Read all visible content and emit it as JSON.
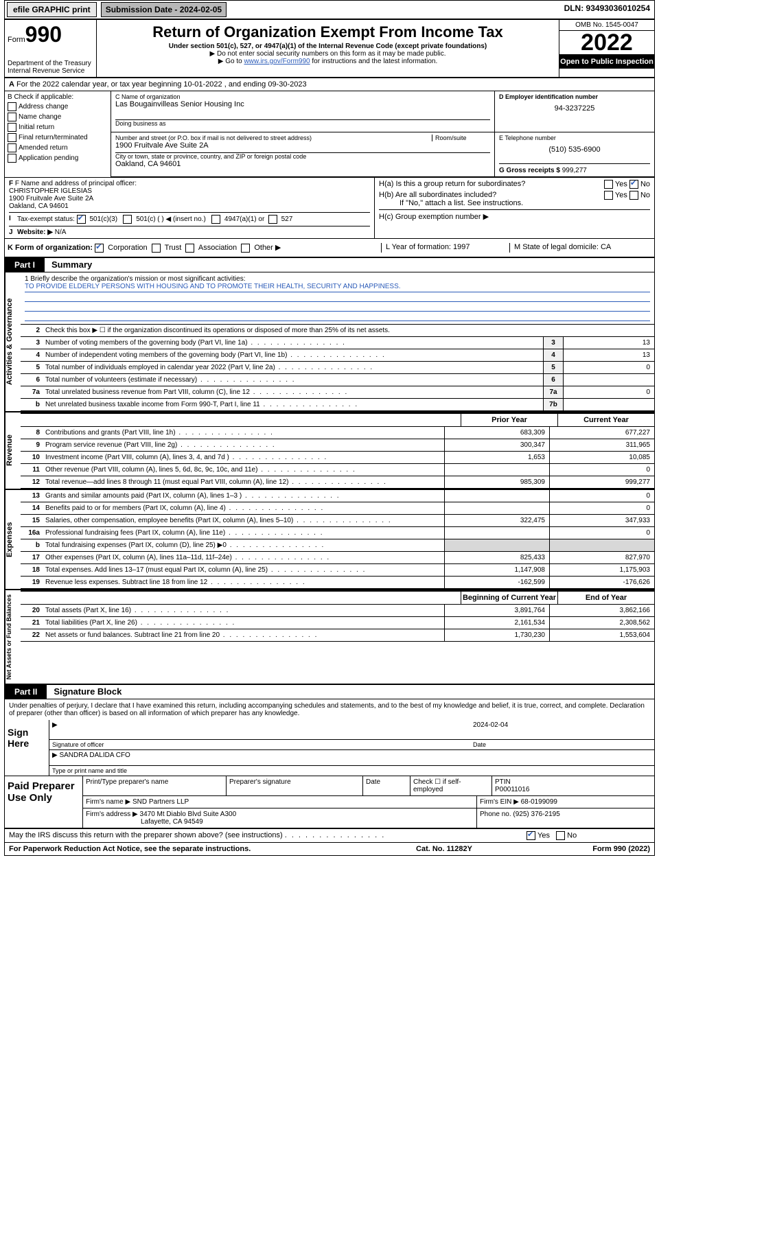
{
  "topbar": {
    "efile": "efile GRAPHIC print",
    "submission": "Submission Date - 2024-02-05",
    "dln": "DLN: 93493036010254"
  },
  "header": {
    "form_prefix": "Form",
    "form_num": "990",
    "dept": "Department of the Treasury\nInternal Revenue Service",
    "title": "Return of Organization Exempt From Income Tax",
    "sub1": "Under section 501(c), 527, or 4947(a)(1) of the Internal Revenue Code (except private foundations)",
    "sub2": "▶ Do not enter social security numbers on this form as it may be made public.",
    "sub3_pre": "▶ Go to ",
    "sub3_link": "www.irs.gov/Form990",
    "sub3_post": " for instructions and the latest information.",
    "omb": "OMB No. 1545-0047",
    "year": "2022",
    "open": "Open to Public Inspection"
  },
  "row_a": "For the 2022 calendar year, or tax year beginning 10-01-2022  , and ending 09-30-2023",
  "section_b": {
    "label": "B Check if applicable:",
    "items": [
      "Address change",
      "Name change",
      "Initial return",
      "Final return/terminated",
      "Amended return",
      "Application pending"
    ]
  },
  "section_c": {
    "name_lbl": "C Name of organization",
    "name": "Las Bougainvilleas Senior Housing Inc",
    "dba_lbl": "Doing business as",
    "dba": "",
    "addr_lbl": "Number and street (or P.O. box if mail is not delivered to street address)",
    "room_lbl": "Room/suite",
    "addr": "1900 Fruitvale Ave Suite 2A",
    "city_lbl": "City or town, state or province, country, and ZIP or foreign postal code",
    "city": "Oakland, CA  94601"
  },
  "section_d": {
    "lbl": "D Employer identification number",
    "val": "94-3237225"
  },
  "section_e": {
    "lbl": "E Telephone number",
    "val": "(510) 535-6900"
  },
  "section_g": {
    "lbl": "G Gross receipts $",
    "val": "999,277"
  },
  "section_f": {
    "lbl": "F Name and address of principal officer:",
    "name": "CHRISTOPHER IGLESIAS",
    "addr1": "1900 Fruitvale Ave Suite 2A",
    "addr2": "Oakland, CA  94601"
  },
  "section_h": {
    "ha": "H(a)  Is this a group return for subordinates?",
    "hb": "H(b)  Are all subordinates included?",
    "hb_note": "If \"No,\" attach a list. See instructions.",
    "hc": "H(c)  Group exemption number ▶",
    "yes": "Yes",
    "no": "No"
  },
  "row_i": {
    "lbl": "Tax-exempt status:",
    "o1": "501(c)(3)",
    "o2": "501(c) (  ) ◀ (insert no.)",
    "o3": "4947(a)(1) or",
    "o4": "527"
  },
  "row_j": {
    "lbl": "Website: ▶",
    "val": "N/A"
  },
  "row_k": {
    "lbl": "K Form of organization:",
    "o1": "Corporation",
    "o2": "Trust",
    "o3": "Association",
    "o4": "Other ▶",
    "l": "L Year of formation: 1997",
    "m": "M State of legal domicile: CA"
  },
  "part1": {
    "tab": "Part I",
    "title": "Summary"
  },
  "side_labels": {
    "gov": "Activities & Governance",
    "rev": "Revenue",
    "exp": "Expenses",
    "net": "Net Assets or\nFund Balances"
  },
  "mission": {
    "q": "1   Briefly describe the organization's mission or most significant activities:",
    "txt": "TO PROVIDE ELDERLY PERSONS WITH HOUSING AND TO PROMOTE THEIR HEALTH, SECURITY AND HAPPINESS."
  },
  "gov_lines": [
    {
      "n": "2",
      "t": "Check this box ▶ ☐ if the organization discontinued its operations or disposed of more than 25% of its net assets.",
      "box": "",
      "v": ""
    },
    {
      "n": "3",
      "t": "Number of voting members of the governing body (Part VI, line 1a)",
      "box": "3",
      "v": "13"
    },
    {
      "n": "4",
      "t": "Number of independent voting members of the governing body (Part VI, line 1b)",
      "box": "4",
      "v": "13"
    },
    {
      "n": "5",
      "t": "Total number of individuals employed in calendar year 2022 (Part V, line 2a)",
      "box": "5",
      "v": "0"
    },
    {
      "n": "6",
      "t": "Total number of volunteers (estimate if necessary)",
      "box": "6",
      "v": ""
    },
    {
      "n": "7a",
      "t": "Total unrelated business revenue from Part VIII, column (C), line 12",
      "box": "7a",
      "v": "0"
    },
    {
      "n": "b",
      "t": "Net unrelated business taxable income from Form 990-T, Part I, line 11",
      "box": "7b",
      "v": ""
    }
  ],
  "fin_head": {
    "c1": "Prior Year",
    "c2": "Current Year"
  },
  "rev_lines": [
    {
      "n": "8",
      "t": "Contributions and grants (Part VIII, line 1h)",
      "c1": "683,309",
      "c2": "677,227"
    },
    {
      "n": "9",
      "t": "Program service revenue (Part VIII, line 2g)",
      "c1": "300,347",
      "c2": "311,965"
    },
    {
      "n": "10",
      "t": "Investment income (Part VIII, column (A), lines 3, 4, and 7d )",
      "c1": "1,653",
      "c2": "10,085"
    },
    {
      "n": "11",
      "t": "Other revenue (Part VIII, column (A), lines 5, 6d, 8c, 9c, 10c, and 11e)",
      "c1": "",
      "c2": "0"
    },
    {
      "n": "12",
      "t": "Total revenue—add lines 8 through 11 (must equal Part VIII, column (A), line 12)",
      "c1": "985,309",
      "c2": "999,277"
    }
  ],
  "exp_lines": [
    {
      "n": "13",
      "t": "Grants and similar amounts paid (Part IX, column (A), lines 1–3 )",
      "c1": "",
      "c2": "0"
    },
    {
      "n": "14",
      "t": "Benefits paid to or for members (Part IX, column (A), line 4)",
      "c1": "",
      "c2": "0"
    },
    {
      "n": "15",
      "t": "Salaries, other compensation, employee benefits (Part IX, column (A), lines 5–10)",
      "c1": "322,475",
      "c2": "347,933"
    },
    {
      "n": "16a",
      "t": "Professional fundraising fees (Part IX, column (A), line 11e)",
      "c1": "",
      "c2": "0"
    },
    {
      "n": "b",
      "t": "Total fundraising expenses (Part IX, column (D), line 25) ▶0",
      "c1": "shade",
      "c2": "shade"
    },
    {
      "n": "17",
      "t": "Other expenses (Part IX, column (A), lines 11a–11d, 11f–24e)",
      "c1": "825,433",
      "c2": "827,970"
    },
    {
      "n": "18",
      "t": "Total expenses. Add lines 13–17 (must equal Part IX, column (A), line 25)",
      "c1": "1,147,908",
      "c2": "1,175,903"
    },
    {
      "n": "19",
      "t": "Revenue less expenses. Subtract line 18 from line 12",
      "c1": "-162,599",
      "c2": "-176,626"
    }
  ],
  "net_head": {
    "c1": "Beginning of Current Year",
    "c2": "End of Year"
  },
  "net_lines": [
    {
      "n": "20",
      "t": "Total assets (Part X, line 16)",
      "c1": "3,891,764",
      "c2": "3,862,166"
    },
    {
      "n": "21",
      "t": "Total liabilities (Part X, line 26)",
      "c1": "2,161,534",
      "c2": "2,308,562"
    },
    {
      "n": "22",
      "t": "Net assets or fund balances. Subtract line 21 from line 20",
      "c1": "1,730,230",
      "c2": "1,553,604"
    }
  ],
  "part2": {
    "tab": "Part II",
    "title": "Signature Block"
  },
  "sig_decl": "Under penalties of perjury, I declare that I have examined this return, including accompanying schedules and statements, and to the best of my knowledge and belief, it is true, correct, and complete. Declaration of preparer (other than officer) is based on all information of which preparer has any knowledge.",
  "sign_here": "Sign Here",
  "sig": {
    "sig_lbl": "Signature of officer",
    "date_lbl": "Date",
    "date": "2024-02-04",
    "name": "SANDRA DALIDA CFO",
    "name_lbl": "Type or print name and title"
  },
  "paid": {
    "lbl": "Paid Preparer Use Only",
    "h1": "Print/Type preparer's name",
    "h2": "Preparer's signature",
    "h3": "Date",
    "h4": "Check ☐ if self-employed",
    "h5": "PTIN",
    "ptin": "P00011016",
    "firm_lbl": "Firm's name    ▶",
    "firm": "SND Partners LLP",
    "ein_lbl": "Firm's EIN ▶",
    "ein": "68-0199099",
    "addr_lbl": "Firm's address ▶",
    "addr1": "3470 Mt Diablo Blvd Suite A300",
    "addr2": "Lafayette, CA  94549",
    "phone_lbl": "Phone no.",
    "phone": "(925) 376-2195"
  },
  "footer": {
    "discuss": "May the IRS discuss this return with the preparer shown above? (see instructions)",
    "yes": "Yes",
    "no": "No",
    "paperwork": "For Paperwork Reduction Act Notice, see the separate instructions.",
    "cat": "Cat. No. 11282Y",
    "form": "Form 990 (2022)"
  }
}
